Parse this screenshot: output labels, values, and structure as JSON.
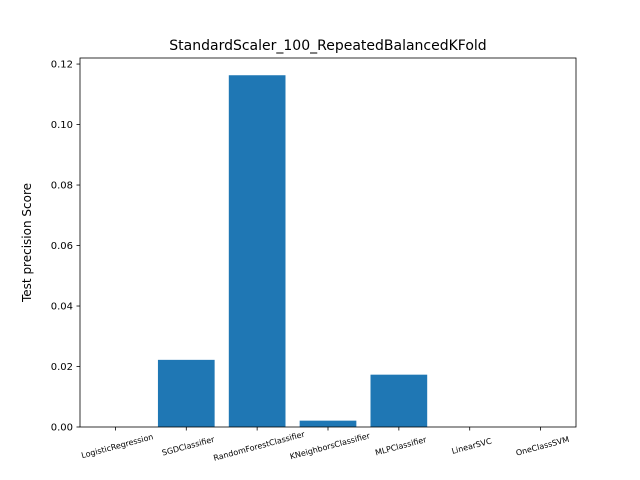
{
  "chart_data": {
    "type": "bar",
    "title": "StandardScaler_100_RepeatedBalancedKFold",
    "xlabel": "",
    "ylabel": "Test precision Score",
    "categories": [
      "LogisticRegression",
      "SGDClassifier",
      "RandomForestClassifier",
      "KNeighborsClassifier",
      "MLPClassifier",
      "LinearSVC",
      "OneClassSVM"
    ],
    "values": [
      0.0,
      0.0222,
      0.1163,
      0.0021,
      0.0173,
      0.0,
      0.0
    ],
    "ylim": [
      0,
      0.122
    ],
    "yticks": [
      0.0,
      0.02,
      0.04,
      0.06,
      0.08,
      0.1,
      0.12
    ],
    "ytick_labels": [
      "0.00",
      "0.02",
      "0.04",
      "0.06",
      "0.08",
      "0.10",
      "0.12"
    ],
    "xlim": [
      -0.5,
      6.5
    ],
    "bar_color": "#1f77b4",
    "grid": false,
    "legend": "none"
  }
}
